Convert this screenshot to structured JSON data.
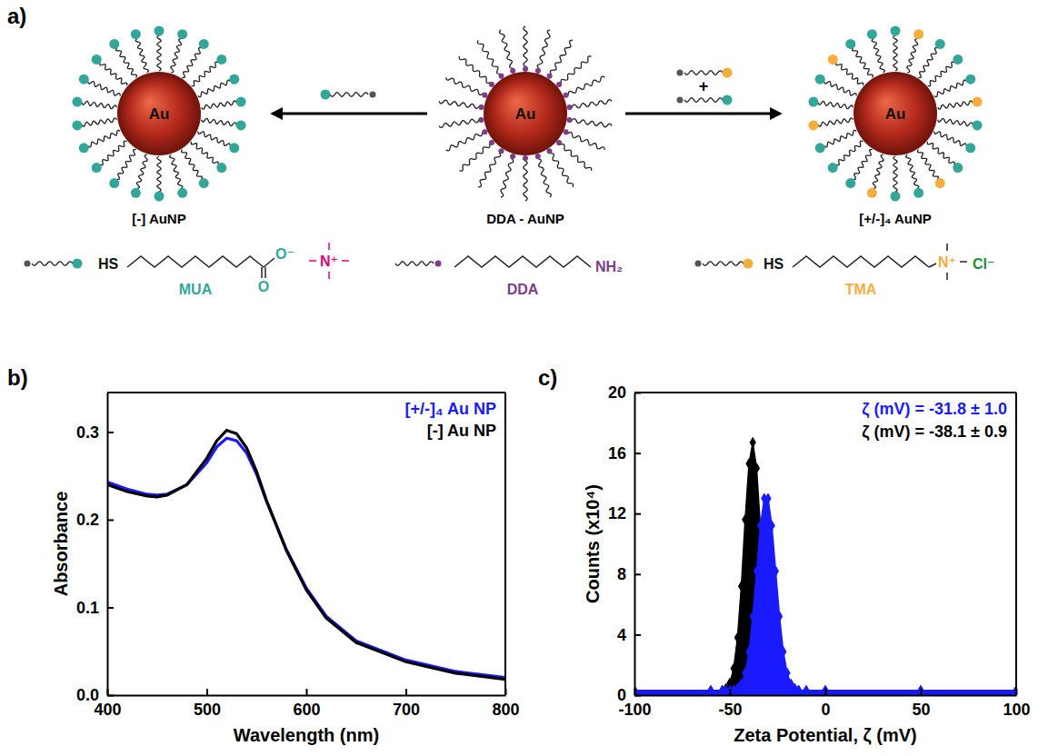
{
  "diagram": {
    "panel_label": "a)",
    "particles": [
      {
        "core": "Au",
        "caption": "[-] AuNP"
      },
      {
        "core": "Au",
        "caption": "DDA - AuNP"
      },
      {
        "core": "Au",
        "caption": "[+/-]₄ AuNP"
      }
    ],
    "plus": "+",
    "ligands": [
      {
        "name": "MUA",
        "thiol": "HS",
        "end": [
          "O⁻",
          "O"
        ],
        "counterion": "N⁺"
      },
      {
        "name": "DDA",
        "end": [
          "NH₂"
        ]
      },
      {
        "name": "TMA",
        "thiol": "HS",
        "end": [
          "N⁺"
        ],
        "counterion": "Cl⁻"
      }
    ]
  },
  "chart_data": [
    {
      "type": "line",
      "panel_label": "b)",
      "x_label": "Wavelength (nm)",
      "y_label": "Absorbance",
      "x": [
        400,
        420,
        440,
        450,
        460,
        480,
        500,
        510,
        520,
        530,
        540,
        550,
        560,
        580,
        600,
        620,
        650,
        700,
        750,
        800
      ],
      "series": [
        {
          "name": "[+/-]₄ Au NP",
          "color": "#1a1aff",
          "values": [
            0.243,
            0.235,
            0.229,
            0.228,
            0.229,
            0.24,
            0.265,
            0.283,
            0.293,
            0.29,
            0.276,
            0.252,
            0.221,
            0.166,
            0.122,
            0.09,
            0.062,
            0.04,
            0.027,
            0.02
          ]
        },
        {
          "name": "[-] Au NP",
          "color": "#000000",
          "values": [
            0.24,
            0.232,
            0.227,
            0.226,
            0.228,
            0.24,
            0.27,
            0.29,
            0.302,
            0.298,
            0.282,
            0.255,
            0.222,
            0.165,
            0.12,
            0.088,
            0.06,
            0.038,
            0.025,
            0.018
          ]
        }
      ],
      "xlim": [
        400,
        800
      ],
      "xticks": [
        400,
        500,
        600,
        700,
        800
      ],
      "ylim": [
        0,
        0.345
      ],
      "yticks": [
        {
          "value": 0,
          "label": "0.0"
        },
        0.1,
        0.2,
        0.3
      ],
      "legend": "upper right"
    },
    {
      "type": "area",
      "panel_label": "c)",
      "x_label": "Zeta Potential, ζ (mV)",
      "y_label": "Counts (x10⁴)",
      "x": [
        -100,
        -60,
        -54,
        -52,
        -50,
        -48,
        -46,
        -44,
        -42,
        -40,
        -38,
        -36,
        -34,
        -32,
        -30,
        -28,
        -26,
        -24,
        -22,
        -20,
        -18,
        -16,
        -14,
        -10,
        0,
        50,
        100
      ],
      "series": [
        {
          "color": "#000000",
          "marker": "diamond",
          "values": [
            0.3,
            0.3,
            0.31,
            0.44,
            0.8,
            1.76,
            3.8,
            7.2,
            11.6,
            15.3,
            16.7,
            15.0,
            11.1,
            6.8,
            3.5,
            1.6,
            0.75,
            0.42,
            0.33,
            0.3,
            0.3,
            0.3,
            0.3,
            0.3,
            0.3,
            0.3,
            0.3
          ]
        },
        {
          "color": "#1a1aff",
          "marker": "diamond",
          "values": [
            0.3,
            0.3,
            0.3,
            0.3,
            0.3,
            0.33,
            0.44,
            0.74,
            1.46,
            2.87,
            5.2,
            8.2,
            11.2,
            13.0,
            13.0,
            11.2,
            8.2,
            5.2,
            2.87,
            1.46,
            0.74,
            0.44,
            0.33,
            0.3,
            0.3,
            0.3,
            0.3
          ]
        }
      ],
      "xlim": [
        -100,
        100
      ],
      "xticks": [
        -100,
        -50,
        0,
        50,
        100
      ],
      "ylim": [
        0,
        20
      ],
      "yticks": [
        0,
        4,
        8,
        12,
        16,
        20
      ],
      "annotations": [
        {
          "text": "ζ (mV) = -31.8 ± 1.0",
          "color": "#1a1aff"
        },
        {
          "text": "ζ (mV) = -38.1 ± 0.9",
          "color": "#000000"
        }
      ]
    }
  ]
}
